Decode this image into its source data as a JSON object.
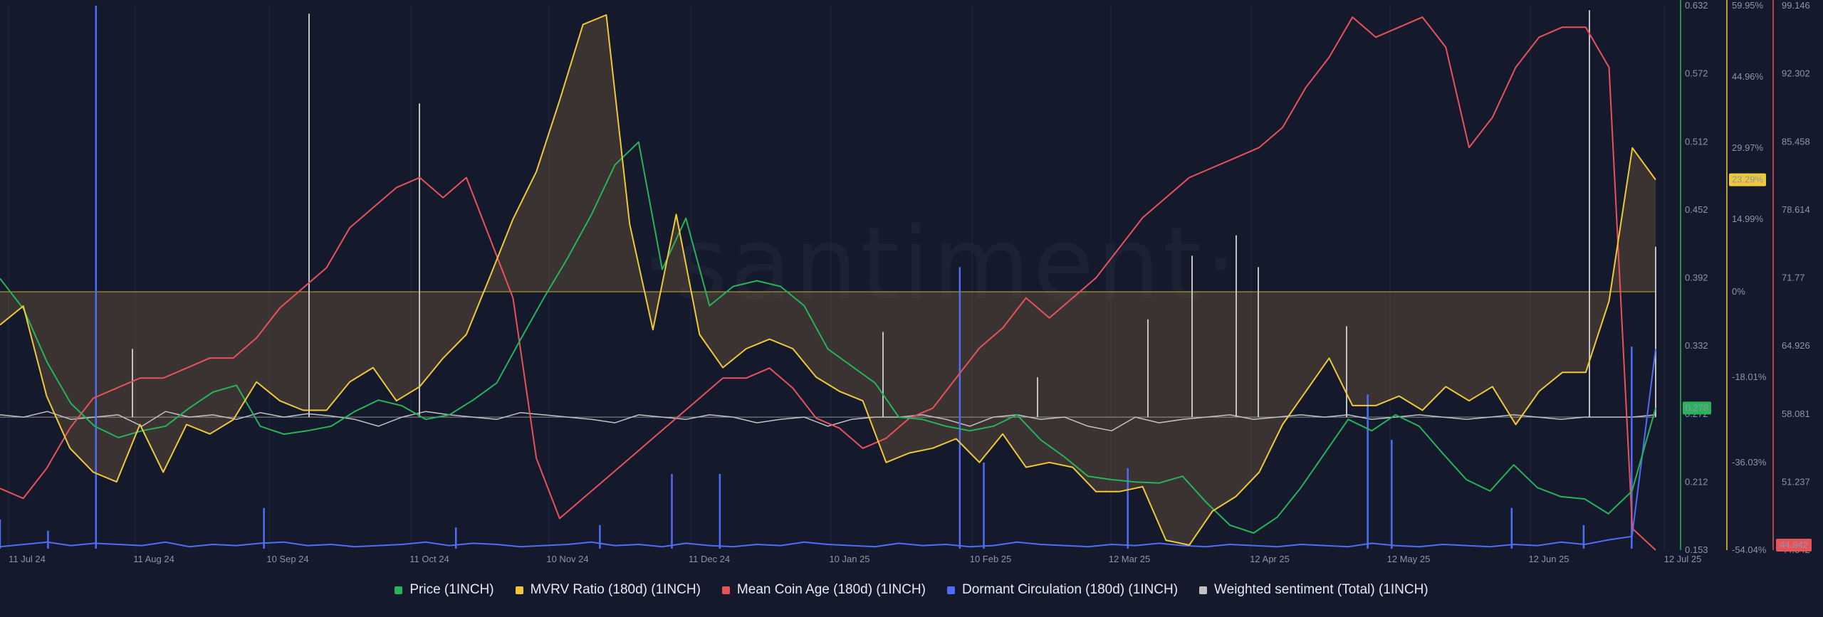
{
  "watermark": "·santiment·",
  "chart_data": {
    "type": "line",
    "x_labels": [
      "11 Jul 24",
      "11 Aug 24",
      "10 Sep 24",
      "11 Oct 24",
      "10 Nov 24",
      "11 Dec 24",
      "10 Jan 25",
      "10 Feb 25",
      "12 Mar 25",
      "12 Apr 25",
      "12 May 25",
      "12 Jun 25",
      "12 Jul 25"
    ],
    "axes": {
      "price": {
        "ticks": [
          "0.632",
          "0.572",
          "0.512",
          "0.452",
          "0.392",
          "0.332",
          "0.272",
          "0.212",
          "0.153"
        ],
        "min": 0.153,
        "max": 0.632,
        "color": "#26b35a"
      },
      "mvrv": {
        "ticks": [
          "59.95%",
          "44.96%",
          "29.97%",
          "14.99%",
          "0%",
          "-18.01%",
          "-36.03%",
          "-54.04%"
        ],
        "color": "#f0c93a"
      },
      "mca": {
        "ticks": [
          "99.146",
          "92.302",
          "85.458",
          "78.614",
          "71.77",
          "64.926",
          "58.081",
          "51.237",
          "44.842"
        ],
        "min": 44.842,
        "max": 99.146,
        "color": "#e8525a"
      }
    },
    "current_labels": {
      "price": "0.278",
      "mvrv": "23.29%",
      "mca": "44.842"
    },
    "series": [
      {
        "name": "Price (1INCH)",
        "color": "#26b35a",
        "axis": "price",
        "values": [
          0.392,
          0.365,
          0.318,
          0.282,
          0.262,
          0.252,
          0.258,
          0.262,
          0.278,
          0.292,
          0.298,
          0.262,
          0.255,
          0.258,
          0.262,
          0.275,
          0.285,
          0.28,
          0.268,
          0.272,
          0.285,
          0.3,
          0.338,
          0.375,
          0.41,
          0.448,
          0.492,
          0.512,
          0.4,
          0.445,
          0.368,
          0.385,
          0.39,
          0.385,
          0.368,
          0.33,
          0.315,
          0.3,
          0.27,
          0.268,
          0.262,
          0.258,
          0.262,
          0.272,
          0.25,
          0.235,
          0.218,
          0.215,
          0.213,
          0.212,
          0.218,
          0.195,
          0.175,
          0.168,
          0.182,
          0.208,
          0.238,
          0.268,
          0.258,
          0.272,
          0.262,
          0.238,
          0.215,
          0.205,
          0.228,
          0.208,
          0.2,
          0.198,
          0.185,
          0.205,
          0.278
        ]
      },
      {
        "name": "MVRV Ratio (180d) (1INCH)",
        "color": "#f0c93a",
        "axis": "mvrv",
        "values": [
          -7,
          -3,
          -22,
          -33,
          -38,
          -40,
          -28,
          -38,
          -28,
          -30,
          -27,
          -19,
          -23,
          -25,
          -25,
          -19,
          -16,
          -23,
          -20,
          -14,
          -9,
          3,
          15,
          25,
          40,
          56,
          58,
          14,
          -8,
          16,
          -9,
          -16,
          -12,
          -10,
          -12,
          -18,
          -21,
          -23,
          -36,
          -34,
          -33,
          -31,
          -36,
          -30,
          -37,
          -36,
          -37,
          -42,
          -42,
          -41,
          -52,
          -53,
          -46,
          -43,
          -38,
          -28,
          -21,
          -14,
          -24,
          -24,
          -22,
          -25,
          -20,
          -23,
          -20,
          -28,
          -21,
          -17,
          -17,
          -2,
          30,
          23.29
        ]
      },
      {
        "name": "Mean Coin Age (180d) (1INCH)",
        "color": "#e8525a",
        "axis": "mca",
        "values": [
          51,
          50,
          53,
          57,
          60,
          61,
          62,
          62,
          63,
          64,
          64,
          66,
          69,
          71,
          73,
          77,
          79,
          81,
          82,
          80,
          82,
          76,
          70,
          54,
          48,
          50,
          52,
          54,
          56,
          58,
          60,
          62,
          62,
          63,
          61,
          58,
          57,
          55,
          56,
          58,
          59,
          62,
          65,
          67,
          70,
          68,
          70,
          72,
          75,
          78,
          80,
          82,
          83,
          84,
          85,
          87,
          91,
          94,
          98,
          96,
          97,
          98,
          95,
          85,
          88,
          93,
          96,
          97,
          97,
          93,
          47,
          44.842
        ]
      },
      {
        "name": "Dormant Circulation (180d) (1INCH)",
        "color": "#4f6df5",
        "axis": "price",
        "values": [
          0.156,
          0.158,
          0.16,
          0.157,
          0.159,
          0.158,
          0.157,
          0.16,
          0.156,
          0.158,
          0.157,
          0.159,
          0.16,
          0.157,
          0.158,
          0.156,
          0.157,
          0.158,
          0.16,
          0.157,
          0.159,
          0.158,
          0.156,
          0.157,
          0.158,
          0.16,
          0.157,
          0.158,
          0.156,
          0.159,
          0.157,
          0.156,
          0.158,
          0.157,
          0.16,
          0.158,
          0.157,
          0.156,
          0.159,
          0.157,
          0.158,
          0.156,
          0.157,
          0.16,
          0.158,
          0.157,
          0.156,
          0.158,
          0.157,
          0.159,
          0.157,
          0.156,
          0.158,
          0.157,
          0.156,
          0.158,
          0.157,
          0.156,
          0.159,
          0.157,
          0.156,
          0.158,
          0.157,
          0.156,
          0.158,
          0.157,
          0.16,
          0.158,
          0.162,
          0.165,
          0.33
        ]
      },
      {
        "name": "Weighted sentiment (Total) (1INCH)",
        "color": "#c2c2c2",
        "axis": "price",
        "values": [
          0.272,
          0.27,
          0.275,
          0.268,
          0.27,
          0.272,
          0.262,
          0.275,
          0.27,
          0.272,
          0.268,
          0.274,
          0.27,
          0.273,
          0.271,
          0.268,
          0.262,
          0.27,
          0.275,
          0.272,
          0.27,
          0.268,
          0.274,
          0.272,
          0.27,
          0.268,
          0.265,
          0.272,
          0.27,
          0.268,
          0.272,
          0.27,
          0.265,
          0.268,
          0.27,
          0.262,
          0.268,
          0.27,
          0.27,
          0.272,
          0.268,
          0.262,
          0.27,
          0.272,
          0.268,
          0.27,
          0.262,
          0.258,
          0.27,
          0.265,
          0.268,
          0.27,
          0.272,
          0.268,
          0.27,
          0.272,
          0.27,
          0.272,
          0.268,
          0.27,
          0.272,
          0.27,
          0.268,
          0.27,
          0.272,
          0.27,
          0.268,
          0.27,
          0.27,
          0.27,
          0.272
        ]
      }
    ],
    "spikes": {
      "dormant": [
        [
          4,
          0.632
        ],
        [
          0,
          0.18
        ],
        [
          2,
          0.17
        ],
        [
          11,
          0.19
        ],
        [
          19,
          0.173
        ],
        [
          25,
          0.175
        ],
        [
          28,
          0.22
        ],
        [
          30,
          0.22
        ],
        [
          40,
          0.402
        ],
        [
          41,
          0.23
        ],
        [
          47,
          0.225
        ],
        [
          57,
          0.29
        ],
        [
          58,
          0.25
        ],
        [
          63,
          0.19
        ],
        [
          66,
          0.175
        ],
        [
          68,
          0.332
        ]
      ],
      "sentiment": [
        [
          14,
          0.625
        ],
        [
          19,
          0.546
        ],
        [
          6,
          0.33
        ],
        [
          40,
          0.345
        ],
        [
          47,
          0.305
        ],
        [
          52,
          0.356
        ],
        [
          54,
          0.412
        ],
        [
          56,
          0.43
        ],
        [
          57,
          0.402
        ],
        [
          72,
          0.628
        ],
        [
          75,
          0.42
        ],
        [
          61,
          0.35
        ]
      ]
    }
  },
  "legend": [
    {
      "label": "Price (1INCH)",
      "color": "#26b35a"
    },
    {
      "label": "MVRV Ratio (180d) (1INCH)",
      "color": "#f0c93a"
    },
    {
      "label": "Mean Coin Age (180d) (1INCH)",
      "color": "#e8525a"
    },
    {
      "label": "Dormant Circulation (180d) (1INCH)",
      "color": "#4f6df5"
    },
    {
      "label": "Weighted sentiment (Total) (1INCH)",
      "color": "#c2c2c2"
    }
  ]
}
